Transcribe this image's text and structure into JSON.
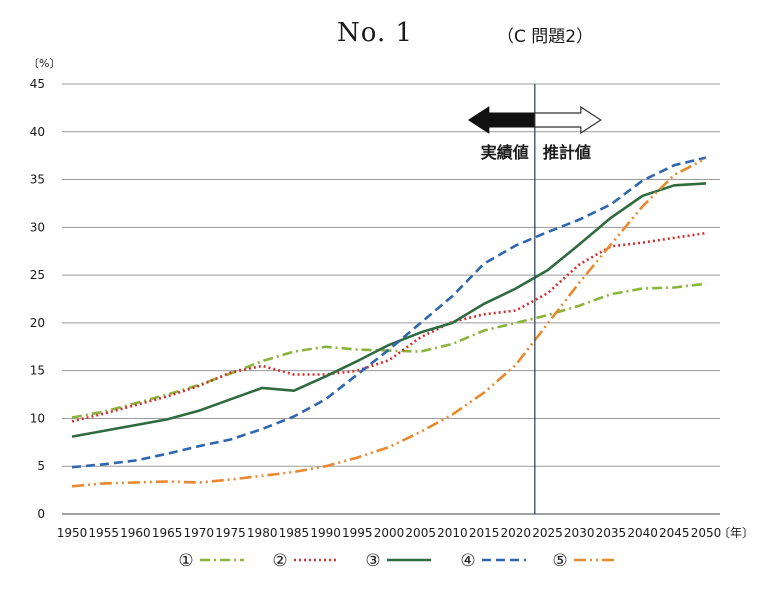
{
  "header": {
    "number_label": "No. 1",
    "problem_label": "（C 問題2）"
  },
  "chart_data": {
    "type": "line",
    "title": "",
    "y_unit": "〔%〕",
    "x_unit": "〔年〕",
    "ylim": [
      0,
      45
    ],
    "yticks": [
      0,
      5,
      10,
      15,
      20,
      25,
      30,
      35,
      40,
      45
    ],
    "grid": true,
    "x": [
      1950,
      1955,
      1960,
      1965,
      1970,
      1975,
      1980,
      1985,
      1990,
      1995,
      2000,
      2005,
      2010,
      2015,
      2020,
      2025,
      2030,
      2035,
      2040,
      2045,
      2050
    ],
    "divider_year": 2023,
    "actual_label": "実績値",
    "projected_label": "推計値",
    "series": [
      {
        "name": "①",
        "color": "#8ab43a",
        "dash": "10,4,2,4",
        "width": 2.6,
        "values": [
          10.1,
          10.7,
          11.6,
          12.5,
          13.5,
          14.7,
          16.0,
          17.0,
          17.5,
          17.2,
          17.1,
          17.0,
          17.8,
          19.2,
          20.0,
          20.8,
          21.8,
          23.0,
          23.6,
          23.7,
          24.1
        ]
      },
      {
        "name": "②",
        "color": "#d32f2f",
        "dash": "2,3",
        "width": 2.6,
        "values": [
          9.7,
          10.5,
          11.4,
          12.3,
          13.4,
          14.8,
          15.5,
          14.6,
          14.6,
          15.0,
          16.1,
          18.5,
          20.1,
          20.9,
          21.3,
          23.1,
          26.1,
          28.0,
          28.4,
          28.9,
          29.4
        ]
      },
      {
        "name": "③",
        "color": "#2e6b3e",
        "dash": "",
        "width": 2.6,
        "values": [
          8.1,
          8.7,
          9.3,
          9.9,
          10.8,
          12.0,
          13.2,
          12.9,
          14.4,
          16.0,
          17.7,
          19.0,
          20.0,
          22.0,
          23.6,
          25.5,
          28.2,
          31.0,
          33.3,
          34.4,
          34.6
        ]
      },
      {
        "name": "④",
        "color": "#2f66b0",
        "dash": "9,5",
        "width": 2.6,
        "values": [
          4.9,
          5.2,
          5.6,
          6.3,
          7.1,
          7.8,
          8.9,
          10.2,
          12.0,
          14.6,
          17.2,
          20.0,
          22.8,
          26.2,
          28.1,
          29.5,
          30.8,
          32.4,
          34.9,
          36.5,
          37.3
        ]
      },
      {
        "name": "⑤",
        "color": "#e8892e",
        "dash": "12,4,2,4,2,4",
        "width": 2.6,
        "values": [
          2.9,
          3.2,
          3.3,
          3.4,
          3.3,
          3.6,
          4.0,
          4.4,
          5.0,
          5.9,
          7.0,
          8.6,
          10.4,
          12.7,
          15.6,
          19.9,
          24.2,
          28.2,
          32.2,
          35.5,
          37.2
        ]
      }
    ]
  }
}
